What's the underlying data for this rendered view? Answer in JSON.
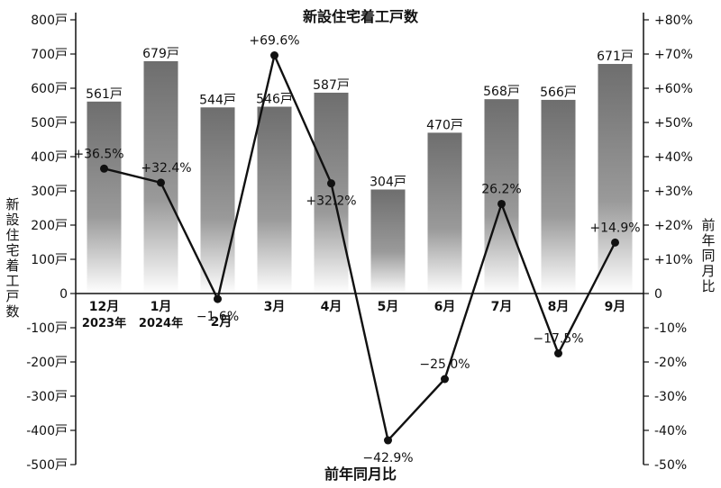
{
  "chart_data": {
    "type": "bar+line",
    "title": "新設住宅着工戸数",
    "xlabel": "前年同月比",
    "ylabel_left": "新設住宅着工戸数",
    "ylabel_right": "前年同月比",
    "categories": [
      {
        "month": "12月",
        "year": "2023年"
      },
      {
        "month": "1月",
        "year": "2024年"
      },
      {
        "month": "2月",
        "year": ""
      },
      {
        "month": "3月",
        "year": ""
      },
      {
        "month": "4月",
        "year": ""
      },
      {
        "month": "5月",
        "year": ""
      },
      {
        "month": "6月",
        "year": ""
      },
      {
        "month": "7月",
        "year": ""
      },
      {
        "month": "8月",
        "year": ""
      },
      {
        "month": "9月",
        "year": ""
      }
    ],
    "bars": {
      "name": "新設住宅着工戸数",
      "values": [
        561,
        679,
        544,
        546,
        587,
        304,
        470,
        568,
        566,
        671
      ],
      "labels": [
        "561戸",
        "679戸",
        "544戸",
        "546戸",
        "587戸",
        "304戸",
        "470戸",
        "568戸",
        "566戸",
        "671戸"
      ]
    },
    "line": {
      "name": "前年同月比",
      "values": [
        36.5,
        32.4,
        -1.6,
        69.6,
        32.2,
        -42.9,
        -25.0,
        26.2,
        -17.5,
        14.9
      ],
      "labels": [
        "+36.5%",
        "+32.4%",
        "−1.6%",
        "+69.6%",
        "+32.2%",
        "−42.9%",
        "−25.0%",
        "26.2%",
        "−17.5%",
        "+14.9%"
      ]
    },
    "left_axis": {
      "range": [
        -500,
        800
      ],
      "ticks": [
        800,
        700,
        600,
        500,
        400,
        300,
        200,
        100,
        0,
        -100,
        -200,
        -300,
        -400,
        -500
      ],
      "tick_labels": [
        "800戸",
        "700戸",
        "600戸",
        "500戸",
        "400戸",
        "300戸",
        "200戸",
        "100戸",
        "0",
        "-100戸",
        "-200戸",
        "-300戸",
        "-400戸",
        "-500戸"
      ]
    },
    "right_axis": {
      "range": [
        -50,
        80
      ],
      "ticks": [
        80,
        70,
        60,
        50,
        40,
        30,
        20,
        10,
        0,
        -10,
        -20,
        -30,
        -40,
        -50
      ],
      "tick_labels": [
        "+80%",
        "+70%",
        "+60%",
        "+50%",
        "+40%",
        "+30%",
        "+20%",
        "+10%",
        "0",
        "-10%",
        "-20%",
        "-30%",
        "-40%",
        "-50%"
      ]
    },
    "grid": false,
    "colors": {
      "bar_top": "#6e6e6e",
      "bar_bottom": "#ffffff",
      "line": "#111111"
    }
  }
}
